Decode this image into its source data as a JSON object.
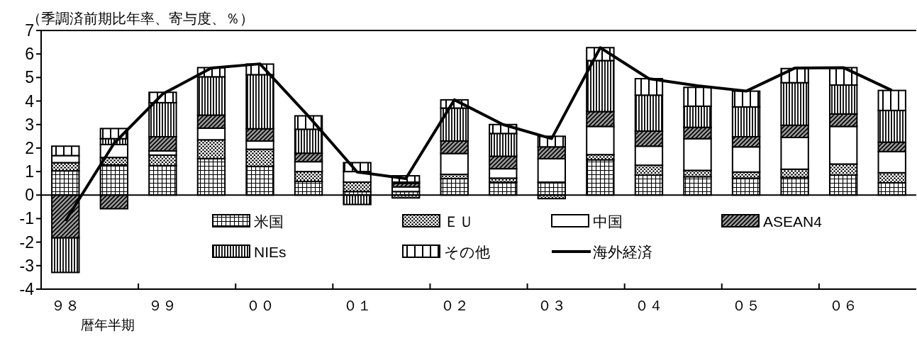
{
  "chart_data": {
    "type": "bar",
    "stacked": true,
    "ylabel": "（季調済前期比年率、寄与度、％）",
    "xlabel": "暦年半期",
    "categories": [
      "９８",
      null,
      "９９",
      null,
      "００",
      null,
      "０１",
      null,
      "０２",
      null,
      "０３",
      null,
      "０４",
      null,
      "０５",
      null,
      "０６",
      null
    ],
    "ylim": [
      -4,
      7
    ],
    "yticks": [
      -4,
      -3,
      -2,
      -1,
      0,
      1,
      2,
      3,
      4,
      5,
      6,
      7
    ],
    "ref_lines": [
      {
        "axis": "y",
        "value": 0,
        "color": "#000000"
      }
    ],
    "legend": "bottom",
    "grid": false,
    "series": [
      {
        "name": "米国",
        "color": "#000000",
        "values": [
          1.03,
          1.28,
          1.25,
          1.55,
          1.22,
          0.58,
          0.15,
          0.15,
          0.7,
          0.55,
          0.55,
          1.5,
          0.85,
          0.78,
          0.72,
          0.75,
          0.85,
          0.52
        ]
      },
      {
        "name": "ＥＵ",
        "color": "#000000",
        "values": [
          0.35,
          0.32,
          0.45,
          0.8,
          0.73,
          0.42,
          0.4,
          -0.12,
          0.18,
          0.17,
          -0.15,
          0.22,
          0.42,
          0.27,
          0.26,
          0.35,
          0.47,
          0.43
        ]
      },
      {
        "name": "中国",
        "color": "#ffffff",
        "values": [
          0.3,
          0.55,
          0.18,
          0.5,
          0.35,
          0.42,
          0.45,
          0.2,
          0.89,
          0.4,
          1.0,
          1.2,
          0.81,
          1.35,
          1.07,
          1.35,
          1.6,
          0.9
        ]
      },
      {
        "name": "ASEAN4",
        "color": "#000000",
        "values": [
          -1.82,
          -0.58,
          0.6,
          0.55,
          0.52,
          0.36,
          0,
          0.15,
          0.53,
          0.53,
          0.5,
          0.63,
          0.64,
          0.48,
          0.43,
          0.52,
          0.53,
          0.4
        ]
      },
      {
        "name": "NIEs",
        "color": "#000000",
        "values": [
          -1.47,
          0.25,
          1.45,
          1.63,
          2.3,
          1.02,
          -0.4,
          0.05,
          1.4,
          0.97,
          0,
          2.17,
          1.53,
          0.9,
          1.27,
          1.81,
          1.23,
          1.35
        ]
      },
      {
        "name": "その他",
        "color": "#000000",
        "values": [
          0.4,
          0.43,
          0.44,
          0.39,
          0.45,
          0.57,
          0.38,
          0.27,
          0.35,
          0.38,
          0.45,
          0.55,
          0.7,
          0.8,
          0.67,
          0.6,
          0.74,
          0.85
        ]
      },
      {
        "name": "海外経済",
        "type": "line",
        "color": "#000000",
        "line_style": "solid",
        "marker": "none",
        "values": [
          -1.1,
          2.2,
          4.3,
          5.4,
          5.58,
          3.35,
          0.98,
          0.7,
          4.05,
          3.0,
          2.4,
          6.27,
          4.95,
          4.65,
          4.42,
          5.4,
          5.42,
          4.45
        ]
      }
    ]
  }
}
